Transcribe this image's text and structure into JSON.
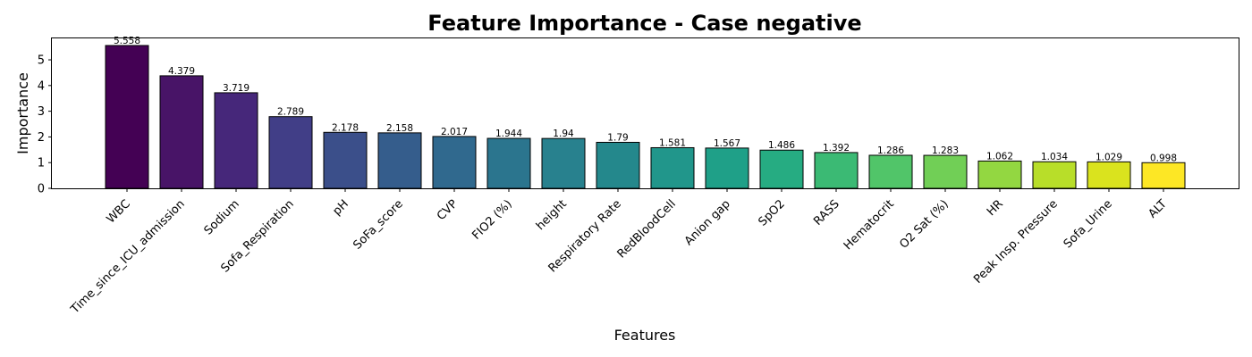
{
  "chart_data": {
    "type": "bar",
    "title": "Feature Importance - Case negative",
    "xlabel": "Features",
    "ylabel": "Importance",
    "ylim": [
      0,
      5.835
    ],
    "yticks": [
      0,
      1,
      2,
      3,
      4,
      5
    ],
    "grid": false,
    "categories": [
      "WBC",
      "Time_since_ICU_admission",
      "Sodium",
      "Sofa_Respiration",
      "pH",
      "SoFa_score",
      "CVP",
      "FIO2 (%)",
      "height",
      "Respiratory Rate",
      "RedBloodCell",
      "Anion gap",
      "SpO2",
      "RASS",
      "Hematocrit",
      "O2 Sat (%)",
      "HR",
      "Peak Insp. Pressure",
      "Sofa_Urine",
      "ALT"
    ],
    "values": [
      5.558,
      4.379,
      3.719,
      2.789,
      2.178,
      2.158,
      2.017,
      1.944,
      1.94,
      1.79,
      1.581,
      1.567,
      1.486,
      1.392,
      1.286,
      1.283,
      1.062,
      1.034,
      1.029,
      0.998
    ],
    "value_labels": [
      "5.558",
      "4.379",
      "3.719",
      "2.789",
      "2.178",
      "2.158",
      "2.017",
      "1.944",
      "1.94",
      "1.79",
      "1.581",
      "1.567",
      "1.486",
      "1.392",
      "1.286",
      "1.283",
      "1.062",
      "1.034",
      "1.029",
      "0.998"
    ],
    "colors": [
      "#440154",
      "#481467",
      "#46277a",
      "#413e87",
      "#3b4f8a",
      "#355d8c",
      "#30698e",
      "#2b758e",
      "#28818e",
      "#24888c",
      "#21968b",
      "#1fa088",
      "#26ac82",
      "#3bba74",
      "#51c569",
      "#71cf56",
      "#93d741",
      "#b8de29",
      "#dae31e",
      "#fde725"
    ],
    "bar_edge_color": "#000000"
  }
}
